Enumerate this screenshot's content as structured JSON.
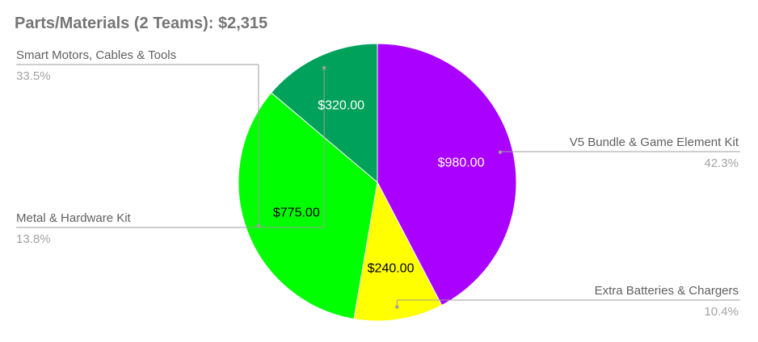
{
  "chart_data": {
    "type": "pie",
    "title": "Parts/Materials (2 Teams): $2,315",
    "slices": [
      {
        "label": "V5 Bundle & Game Element Kit",
        "value": 980,
        "value_label": "$980.00",
        "percent": "42.3%",
        "color": "#aa00ff",
        "value_text_color": "#ffffff",
        "label_side": "right"
      },
      {
        "label": "Extra Batteries & Chargers",
        "value": 240,
        "value_label": "$240.00",
        "percent": "10.4%",
        "color": "#ffff00",
        "value_text_color": "#000000",
        "label_side": "right"
      },
      {
        "label": "Smart Motors, Cables & Tools",
        "value": 775,
        "value_label": "$775.00",
        "percent": "33.5%",
        "color": "#00ff00",
        "value_text_color": "#000000",
        "label_side": "left"
      },
      {
        "label": "Metal & Hardware Kit",
        "value": 320,
        "value_label": "$320.00",
        "percent": "13.8%",
        "color": "#00a15a",
        "value_text_color": "#ffffff",
        "label_side": "left"
      }
    ],
    "start_angle_deg": 0,
    "direction": "clockwise",
    "legend": "none",
    "slice_border_color": "#ffffff",
    "leader_line_color": "#9e9e9e"
  }
}
